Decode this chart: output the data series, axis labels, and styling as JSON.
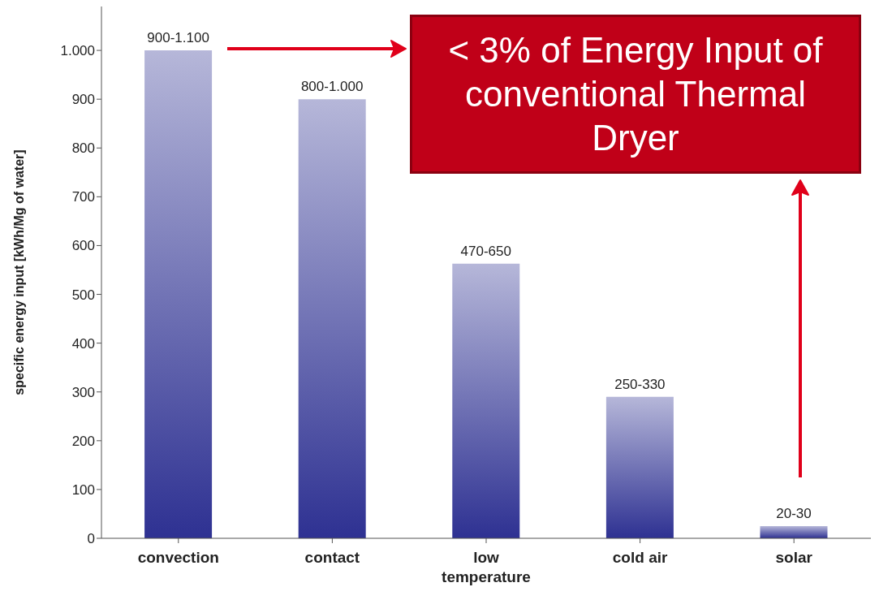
{
  "chart_data": {
    "type": "bar",
    "ylabel": "specific energy input [kWh/Mg of water]",
    "categories": [
      "convection",
      "contact",
      "low temperature",
      "cold air",
      "solar"
    ],
    "values": [
      1000,
      900,
      563,
      290,
      25
    ],
    "value_labels": [
      "900-1.100",
      "800-1.000",
      "470-650",
      "250-330",
      "20-30"
    ],
    "color": "#2e3192",
    "ylim": [
      0,
      1090
    ],
    "yticks": [
      0,
      100,
      200,
      300,
      400,
      500,
      600,
      700,
      800,
      900,
      {
        "value": 1000,
        "label": "1.000"
      }
    ],
    "grid": false,
    "annotations": [
      "< 3% of Energy Input of conventional Thermal Dryer"
    ]
  }
}
